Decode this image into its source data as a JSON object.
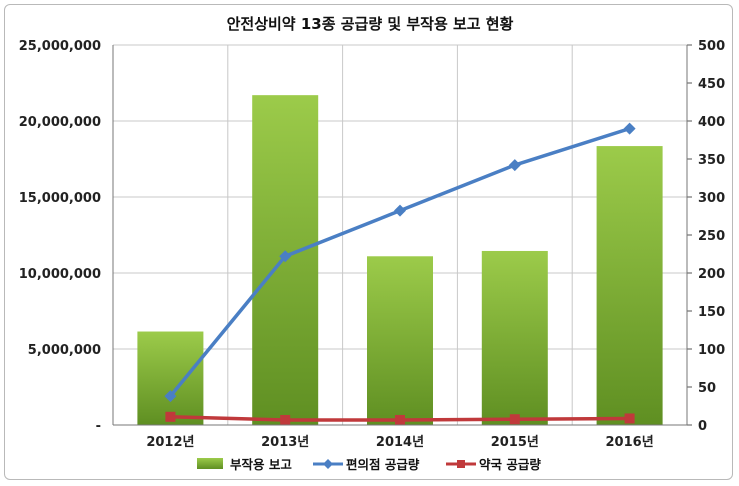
{
  "chart_data": {
    "type": "bar",
    "title": "안전상비약 13종 공급량 및 부작용 보고 현황",
    "categories": [
      "2012년",
      "2013년",
      "2014년",
      "2015년",
      "2016년"
    ],
    "y_left": {
      "min": 0,
      "max": 25000000,
      "step": 5000000,
      "tick_labels": [
        "-",
        "5,000,000",
        "10,000,000",
        "15,000,000",
        "20,000,000",
        "25,000,000"
      ]
    },
    "y_right": {
      "min": 0,
      "max": 500,
      "step": 50,
      "tick_labels": [
        "0",
        "50",
        "100",
        "150",
        "200",
        "250",
        "300",
        "350",
        "400",
        "450",
        "500"
      ]
    },
    "grid": true,
    "legend_position": "bottom",
    "series": [
      {
        "name": "부작용 보고",
        "kind": "bar",
        "axis": "right",
        "color": "#7faf2f",
        "values": [
          123,
          434,
          222,
          229,
          367
        ]
      },
      {
        "name": "편의점 공급량",
        "kind": "line",
        "axis": "left",
        "color": "#4a7fc4",
        "values": [
          1900000,
          11100000,
          14100000,
          17100000,
          19500000
        ]
      },
      {
        "name": "약국 공급량",
        "kind": "line",
        "axis": "left",
        "color": "#c0393b",
        "values": [
          540000,
          330000,
          330000,
          380000,
          430000
        ]
      }
    ]
  }
}
